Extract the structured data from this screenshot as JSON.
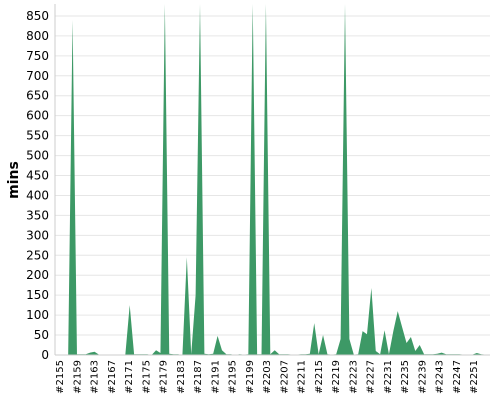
{
  "chart_data": {
    "type": "area",
    "title": "",
    "xlabel": "",
    "ylabel": "mins",
    "ylim": [
      0,
      880
    ],
    "yticks": [
      0,
      50,
      100,
      150,
      200,
      250,
      300,
      350,
      400,
      450,
      500,
      550,
      600,
      650,
      700,
      750,
      800,
      850
    ],
    "xtick_labels": [
      "#2155",
      "#2159",
      "#2163",
      "#2167",
      "#2171",
      "#2175",
      "#2179",
      "#2183",
      "#2187",
      "#2191",
      "#2195",
      "#2199",
      "#2203",
      "#2207",
      "#2211",
      "#2215",
      "#2219",
      "#2223",
      "#2227",
      "#2231",
      "#2235",
      "#2239",
      "#2243",
      "#2247",
      "#2251"
    ],
    "grid": true,
    "legend": "none",
    "colors": {
      "fill": "#3d9966",
      "grid": "#e6e6e6",
      "axis": "#cccccc"
    },
    "series": [
      {
        "color": "#3d9966",
        "values": [
          0,
          1,
          1,
          1,
          840,
          2,
          2,
          2,
          6,
          8,
          1,
          1,
          1,
          1,
          1,
          1,
          0,
          125,
          2,
          2,
          2,
          2,
          0,
          12,
          5,
          1000,
          3,
          2,
          2,
          0,
          245,
          2,
          150,
          1000,
          3,
          2,
          3,
          48,
          12,
          2,
          2,
          0,
          2,
          1,
          2,
          1000,
          2,
          2,
          1000,
          2,
          12,
          2,
          2,
          2,
          1,
          1,
          2,
          2,
          3,
          80,
          2,
          50,
          2,
          1,
          2,
          40,
          1000,
          40,
          1,
          2,
          60,
          52,
          168,
          10,
          2,
          62,
          2,
          60,
          110,
          70,
          30,
          45,
          10,
          25,
          2,
          2,
          2,
          3,
          6,
          2,
          2,
          2,
          2,
          1,
          1,
          1,
          5,
          2,
          1,
          1
        ]
      }
    ]
  }
}
